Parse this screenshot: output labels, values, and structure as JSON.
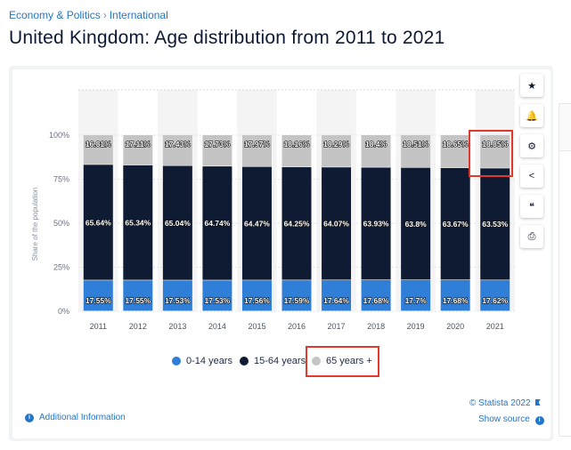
{
  "breadcrumb": {
    "section": "Economy & Politics",
    "separator": "›",
    "subsection": "International"
  },
  "title": "United Kingdom: Age distribution from 2011 to 2021",
  "toolbar": [
    {
      "name": "favorite-icon",
      "glyph": "★"
    },
    {
      "name": "notification-icon",
      "glyph": "🔔"
    },
    {
      "name": "settings-icon",
      "glyph": "⚙"
    },
    {
      "name": "share-icon",
      "glyph": "<"
    },
    {
      "name": "cite-icon",
      "glyph": "❝"
    },
    {
      "name": "print-icon",
      "glyph": "⎙"
    }
  ],
  "footer": {
    "copyright": "© Statista 2022",
    "show_source": "Show source",
    "additional_info": "Additional Information"
  },
  "colors": {
    "young": "#2f7ed8",
    "working": "#0e1b33",
    "elderly": "#c4c4c4",
    "highlight": "#e03a2f",
    "link": "#2276c9"
  },
  "chart_data": {
    "type": "bar",
    "stacked": true,
    "categories": [
      "2011",
      "2012",
      "2013",
      "2014",
      "2015",
      "2016",
      "2017",
      "2018",
      "2019",
      "2020",
      "2021"
    ],
    "series": [
      {
        "name": "0-14 years",
        "values": [
          17.55,
          17.55,
          17.53,
          17.53,
          17.56,
          17.59,
          17.64,
          17.68,
          17.7,
          17.68,
          17.62
        ],
        "labels": [
          "17.55%",
          "17.55%",
          "17.53%",
          "17.53%",
          "17.56%",
          "17.59%",
          "17.64%",
          "17.68%",
          "17.7%",
          "17.68%",
          "17.62%"
        ]
      },
      {
        "name": "15-64 years",
        "values": [
          65.64,
          65.34,
          65.04,
          64.74,
          64.47,
          64.25,
          64.07,
          63.93,
          63.8,
          63.67,
          63.53
        ],
        "labels": [
          "65.64%",
          "65.34%",
          "65.04%",
          "64.74%",
          "64.47%",
          "64.25%",
          "64.07%",
          "63.93%",
          "63.8%",
          "63.67%",
          "63.53%"
        ]
      },
      {
        "name": "65 years +",
        "values": [
          16.81,
          17.11,
          17.43,
          17.73,
          17.97,
          18.16,
          18.29,
          18.4,
          18.51,
          18.65,
          18.85
        ],
        "labels": [
          "16.81%",
          "17.11%",
          "17.43%",
          "17.73%",
          "17.97%",
          "18.16%",
          "18.29%",
          "18.4%",
          "18.51%",
          "18.65%",
          "18.85%"
        ]
      }
    ],
    "ylabel": "Share of the population",
    "yticks": [
      "0%",
      "25%",
      "50%",
      "75%",
      "100%"
    ],
    "ylim": [
      0,
      100
    ],
    "legend": [
      "0-14 years",
      "15-64 years",
      "65 years +"
    ]
  }
}
